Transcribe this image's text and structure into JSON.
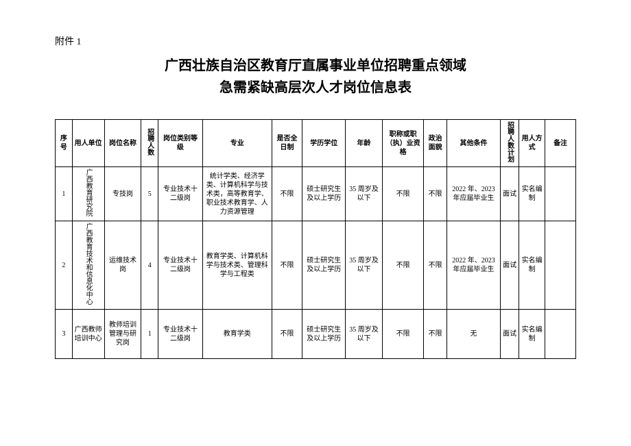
{
  "attachment_label": "附件 1",
  "title_line1": "广西壮族自治区教育厅直属事业单位招聘重点领域",
  "title_line2": "急需紧缺高层次人才岗位信息表",
  "headers": {
    "seq": "序号",
    "unit": "用人单位",
    "posname": "岗位名称",
    "count": "招聘人数",
    "level": "岗位类别等级",
    "major": "专业",
    "fulltime": "是否全日制",
    "edu": "学历学位",
    "age": "年龄",
    "qual": "职称或职（执）业资格",
    "political": "政治面貌",
    "other": "其他条件",
    "plan": "招聘人数计划",
    "method": "用人方式",
    "remark": "备注"
  },
  "rows": [
    {
      "seq": "1",
      "unit": "广西教育研究院",
      "posname": "专技岗",
      "count": "5",
      "level": "专业技术十二级岗",
      "major": "统计学类、经济学类、计算机科学与技术类，高等教育学、职业技术教育学、人力资源管理",
      "fulltime": "不限",
      "edu": "硕士研究生及以上学历",
      "age": "35 周岁及以下",
      "qual": "不限",
      "political": "不限",
      "other": "2022 年、2023 年应届毕业生",
      "plan": "面试",
      "method": "实名编制",
      "remark": ""
    },
    {
      "seq": "2",
      "unit": "广西教育技术和信息化中心",
      "posname": "运维技术岗",
      "count": "4",
      "level": "专业技术十二级岗",
      "major": "教育学类、计算机科学与技术类、管理科学与工程类",
      "fulltime": "不限",
      "edu": "硕士研究生及以上学历",
      "age": "35 周岁及以下",
      "qual": "不限",
      "political": "不限",
      "other": "2022 年、2023 年应届毕业生",
      "plan": "面试",
      "method": "实名编制",
      "remark": ""
    },
    {
      "seq": "3",
      "unit": "广西教师培训中心",
      "posname": "教师培训管理与研究岗",
      "count": "1",
      "level": "专业技术十二级岗",
      "major": "教育学类",
      "fulltime": "不限",
      "edu": "硕士研究生及以上学历",
      "age": "35 周岁及以下",
      "qual": "不限",
      "political": "不限",
      "other": "无",
      "plan": "面试",
      "method": "实名编制",
      "remark": ""
    }
  ]
}
